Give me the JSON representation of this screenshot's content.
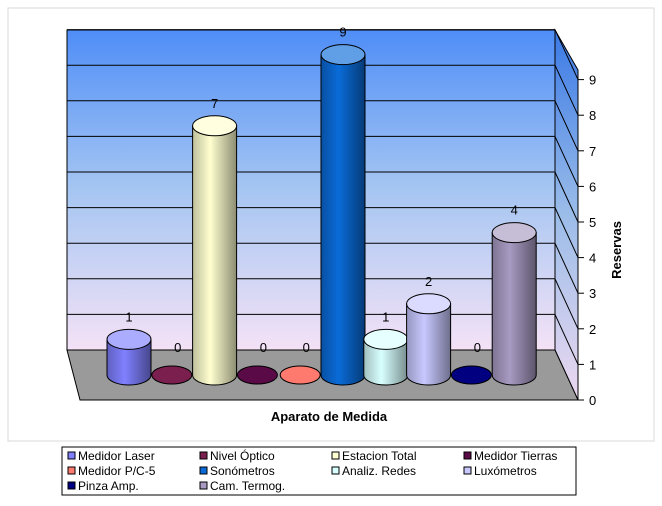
{
  "chart_data": {
    "type": "bar",
    "style": "3d-cylinder",
    "categories": [
      "Medidor Laser",
      "Nivel Óptico",
      "Estacion Total",
      "Medidor Tierras",
      "Medidor P/C-5",
      "Sonómetros",
      "Analiz. Redes",
      "Luxómetros",
      "Pinza Amp.",
      "Cam. Termog."
    ],
    "values": [
      1,
      0,
      7,
      0,
      0,
      9,
      1,
      2,
      0,
      4
    ],
    "data_labels": [
      "1",
      "0",
      "7",
      "0",
      "0",
      "9",
      "1",
      "2",
      "0",
      "4"
    ],
    "colors": [
      "#8080ff",
      "#7a1f4e",
      "#ffffd0",
      "#5a0a46",
      "#ff7a6e",
      "#0a6bd8",
      "#d8ffff",
      "#c8c8ff",
      "#000080",
      "#a89ac2"
    ],
    "xlabel": "Aparato de Medida",
    "ylabel": "Reservas",
    "ylim": [
      0,
      9
    ],
    "yticks": [
      "0",
      "1",
      "2",
      "3",
      "4",
      "5",
      "6",
      "7",
      "8",
      "9"
    ],
    "axis_position": "right",
    "grid": true,
    "legend_position": "bottom",
    "background": "blue-to-pink gradient wall, gray floor"
  }
}
